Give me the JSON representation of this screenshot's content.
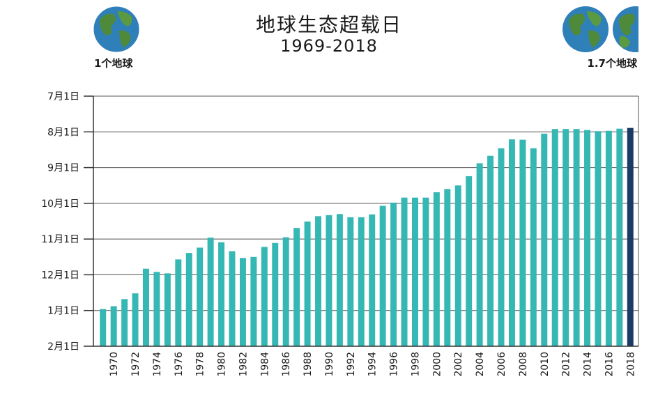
{
  "chart_data": {
    "type": "bar",
    "title": "地球生态超载日",
    "subtitle": "1969-2018",
    "xlabel": "",
    "ylabel": "",
    "y_tick_labels": [
      "7月1日",
      "8月1日",
      "9月1日",
      "10月1日",
      "11月1日",
      "12月1日",
      "1月1日",
      "2月1日"
    ],
    "ylim": [
      0,
      7
    ],
    "x_tick_labels": [
      "1970",
      "1972",
      "1974",
      "1976",
      "1978",
      "1980",
      "1982",
      "1984",
      "1986",
      "1988",
      "1990",
      "1992",
      "1994",
      "1996",
      "1998",
      "2000",
      "2002",
      "2004",
      "2006",
      "2008",
      "2010",
      "2012",
      "2014",
      "2016",
      "2018"
    ],
    "categories": [
      "1969",
      "1970",
      "1971",
      "1972",
      "1973",
      "1974",
      "1975",
      "1976",
      "1977",
      "1978",
      "1979",
      "1980",
      "1981",
      "1982",
      "1983",
      "1984",
      "1985",
      "1986",
      "1987",
      "1988",
      "1989",
      "1990",
      "1991",
      "1992",
      "1993",
      "1994",
      "1995",
      "1996",
      "1997",
      "1998",
      "1999",
      "2000",
      "2001",
      "2002",
      "2003",
      "2004",
      "2005",
      "2006",
      "2007",
      "2008",
      "2009",
      "2010",
      "2011",
      "2012",
      "2013",
      "2014",
      "2015",
      "2016",
      "2017",
      "2018"
    ],
    "values": [
      1.04,
      1.12,
      1.32,
      1.48,
      2.17,
      2.08,
      2.04,
      2.43,
      2.61,
      2.76,
      3.04,
      2.91,
      2.66,
      2.47,
      2.5,
      2.78,
      2.89,
      3.05,
      3.31,
      3.49,
      3.64,
      3.67,
      3.7,
      3.61,
      3.61,
      3.69,
      3.93,
      4.02,
      4.16,
      4.16,
      4.16,
      4.31,
      4.4,
      4.5,
      4.76,
      5.12,
      5.33,
      5.54,
      5.79,
      5.78,
      5.54,
      5.95,
      6.08,
      6.08,
      6.08,
      6.05,
      6.02,
      6.03,
      6.09,
      6.11
    ],
    "bar_color": "#35b7b4",
    "highlight_color": "#1b3a66",
    "highlight_index": 49
  },
  "globes": {
    "left_label": "1个地球",
    "right_label": "1.7个地球"
  }
}
